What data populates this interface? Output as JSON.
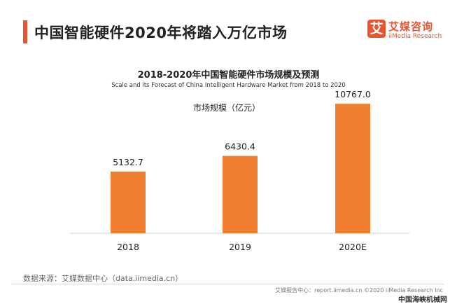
{
  "header": {
    "title": "中国智能硬件2020年将踏入万亿市场"
  },
  "logo": {
    "mark": "艾",
    "name_cn": "艾媒咨询",
    "name_en": "iiMedia Research",
    "color": "#e8552e"
  },
  "chart_data": {
    "type": "bar",
    "title": "2018-2020年中国智能硬件市场规模及预测",
    "subtitle": "Scale and its Forecast of China Intelligent Hardware Market from 2018 to 2020",
    "unit_label": "市场规模（亿元）",
    "categories": [
      "2018",
      "2019",
      "2020E"
    ],
    "values": [
      5132.7,
      6430.4,
      10767.0
    ],
    "value_labels": [
      "5132.7",
      "6430.4",
      "10767.0"
    ],
    "bar_color": "#f08030",
    "ylim": [
      0,
      12000
    ],
    "grid": false,
    "legend": "none"
  },
  "source_text": "数据来源：艾媒数据中心（data.iimedia.cn）",
  "footer_text": "艾媒报告中心：report.iimedia.cn ©2020 iiMedia Research Inc",
  "watermark_text": "中国海峡机械网"
}
